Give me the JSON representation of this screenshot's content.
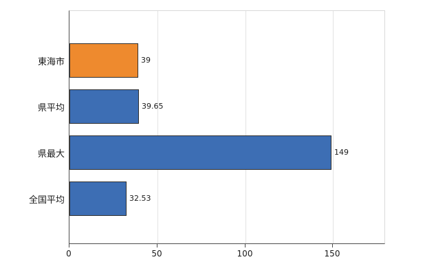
{
  "chart_data": {
    "type": "bar",
    "orientation": "horizontal",
    "title": "",
    "categories": [
      "東海市",
      "県平均",
      "県最大",
      "全国平均"
    ],
    "values": [
      39,
      39.65,
      149,
      32.53
    ],
    "value_labels": [
      "39",
      "39.65",
      "149",
      "32.53"
    ],
    "bar_colors": [
      "#ee8a2e",
      "#3d6eb4",
      "#3d6eb4",
      "#3d6eb4"
    ],
    "xlabel": "",
    "ylabel": "",
    "xlim": [
      0,
      180
    ],
    "xticks": [
      0,
      50,
      100,
      150
    ],
    "xtick_labels": [
      "0",
      "50",
      "100",
      "150"
    ],
    "grid": true,
    "legend": "none",
    "highlight_category": "東海市",
    "highlight_color": "#ee8a2e",
    "default_bar_color": "#3d6eb4"
  }
}
